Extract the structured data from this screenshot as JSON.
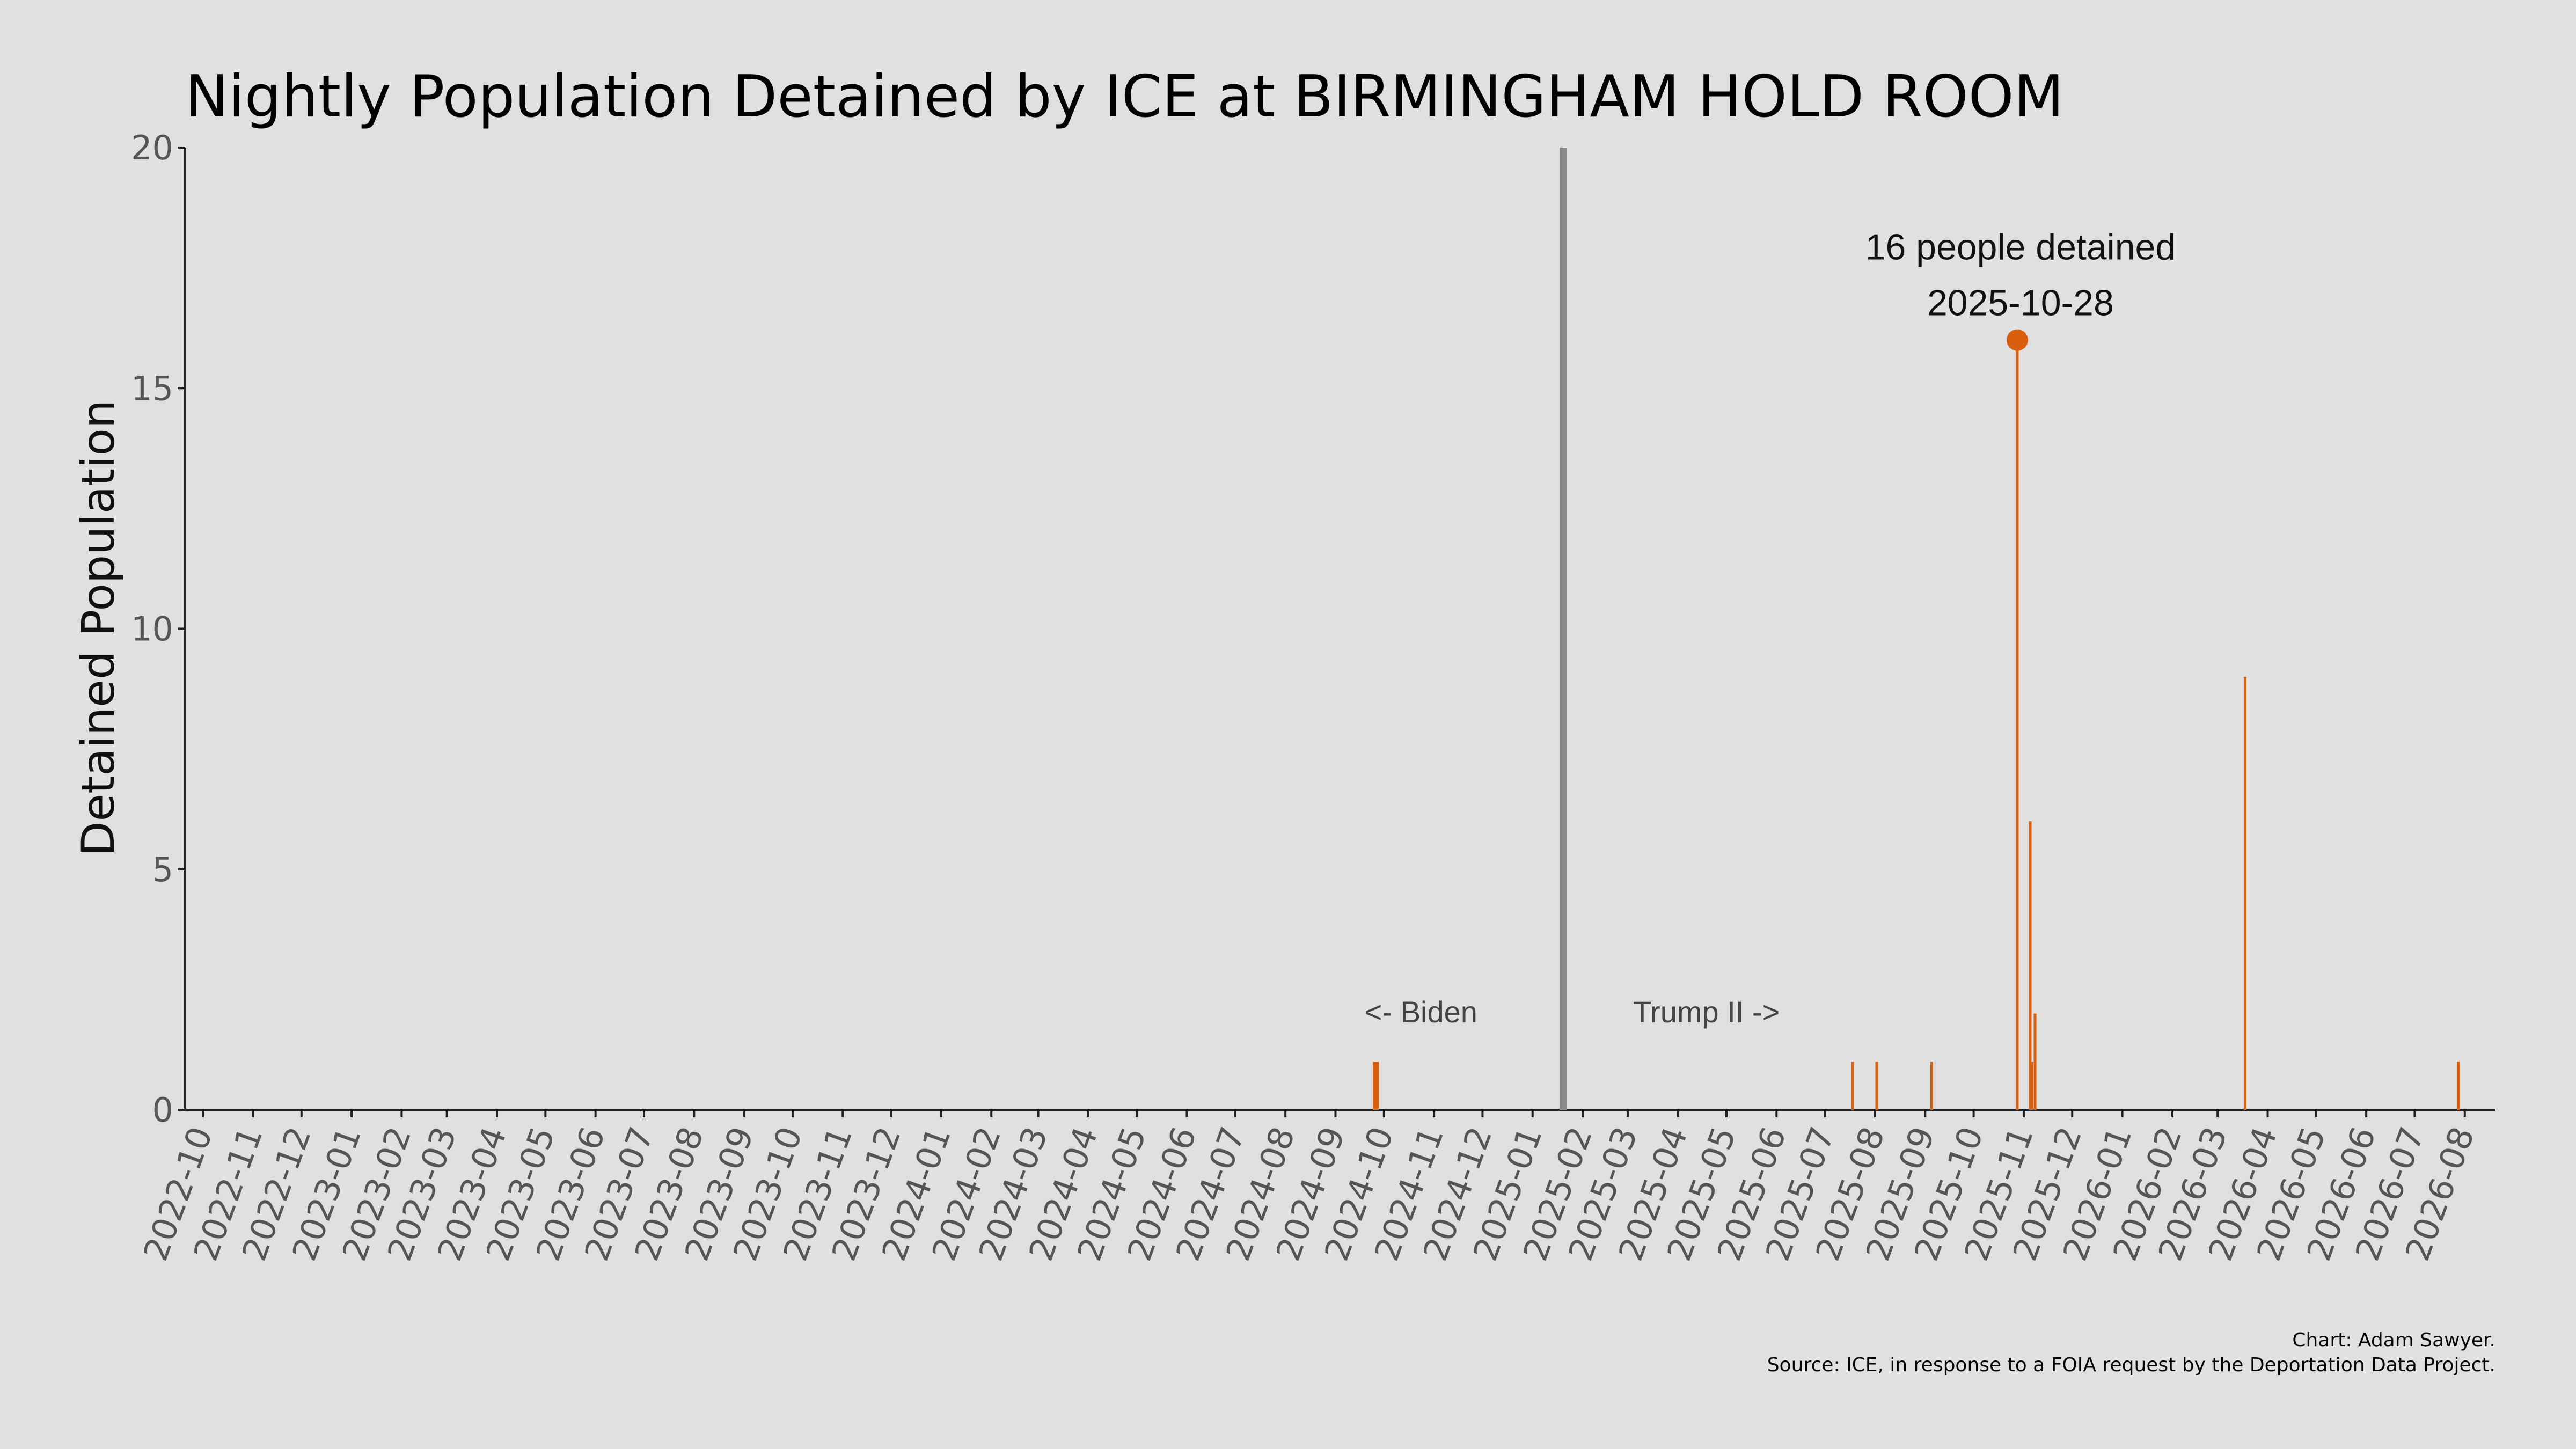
{
  "chart_data": {
    "type": "bar",
    "title": "Nightly Population Detained by ICE at BIRMINGHAM HOLD ROOM",
    "xlabel": "",
    "ylabel": "Detained Population",
    "ylim": [
      0,
      20
    ],
    "yticks": [
      0,
      5,
      10,
      15,
      20
    ],
    "xlim": [
      "2022-09-20",
      "2026-08-20"
    ],
    "xticks": [
      "2022-10",
      "2022-11",
      "2022-12",
      "2023-01",
      "2023-02",
      "2023-03",
      "2023-04",
      "2023-05",
      "2023-06",
      "2023-07",
      "2023-08",
      "2023-09",
      "2023-10",
      "2023-11",
      "2023-12",
      "2024-01",
      "2024-02",
      "2024-03",
      "2024-04",
      "2024-05",
      "2024-06",
      "2024-07",
      "2024-08",
      "2024-09",
      "2024-10",
      "2024-11",
      "2024-12",
      "2025-01",
      "2025-02",
      "2025-03",
      "2025-04",
      "2025-05",
      "2025-06",
      "2025-07",
      "2025-08",
      "2025-09",
      "2025-10",
      "2025-11",
      "2025-12",
      "2026-01",
      "2026-02",
      "2026-03",
      "2026-04",
      "2026-05",
      "2026-06",
      "2026-07",
      "2026-08"
    ],
    "points": [
      {
        "date": "2024-09-25",
        "value": 1
      },
      {
        "date": "2024-09-26",
        "value": 1
      },
      {
        "date": "2024-09-27",
        "value": 1
      },
      {
        "date": "2025-07-18",
        "value": 1
      },
      {
        "date": "2025-08-02",
        "value": 1
      },
      {
        "date": "2025-09-05",
        "value": 1
      },
      {
        "date": "2025-10-28",
        "value": 16
      },
      {
        "date": "2025-11-05",
        "value": 6
      },
      {
        "date": "2025-11-06",
        "value": 1
      },
      {
        "date": "2025-11-08",
        "value": 2
      },
      {
        "date": "2026-03-18",
        "value": 9
      },
      {
        "date": "2026-07-28",
        "value": 1
      }
    ],
    "divider_date": "2025-01-20",
    "era_labels": {
      "left": "<- Biden",
      "right": "Trump II ->"
    },
    "peak": {
      "date": "2025-10-28",
      "value": 16,
      "label_line1": "16 people detained",
      "label_line2": "2025-10-28"
    },
    "grid": false,
    "bar_color": "#d95f0e",
    "divider_color": "#8a8a8a"
  },
  "credits": {
    "line1": "Chart: Adam Sawyer.",
    "line2": "Source: ICE, in response to a FOIA request by the Deportation Data Project."
  }
}
